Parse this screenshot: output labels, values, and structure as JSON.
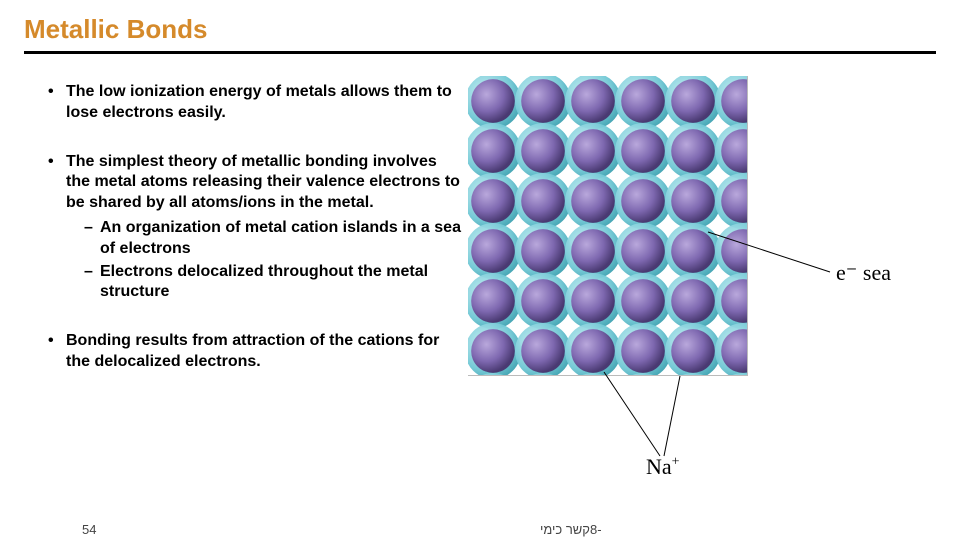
{
  "title": {
    "text": "Metallic Bonds",
    "color": "#d58a2b",
    "fontsize": 26
  },
  "bullets": [
    {
      "text": "The low ionization energy of metals allows them to lose electrons easily."
    },
    {
      "text": "The simplest theory of metallic bonding involves the metal atoms releasing their valence electrons to be shared by all atoms/ions in the metal.",
      "sub": [
        "An organization of metal cation islands in a sea of electrons",
        "Electrons delocalized throughout the metal structure"
      ]
    },
    {
      "text": "Bonding results from attraction of the cations for the delocalized electrons."
    }
  ],
  "figure": {
    "label_e": "e⁻  sea",
    "label_na": "Na",
    "label_na_sup": "+",
    "cation_color": "#7e68b0",
    "cation_highlight": "#b9a8dc",
    "electron_color": "#6fc7d4",
    "electron_highlight": "#c3edf2",
    "rows": 6,
    "cols": 5,
    "atom_radius": 28,
    "electron_radius": 28,
    "spacing": 50
  },
  "footer": {
    "page": "54",
    "text": "-8קשר כימי"
  },
  "colors": {
    "bg": "#ffffff",
    "text": "#000000"
  }
}
